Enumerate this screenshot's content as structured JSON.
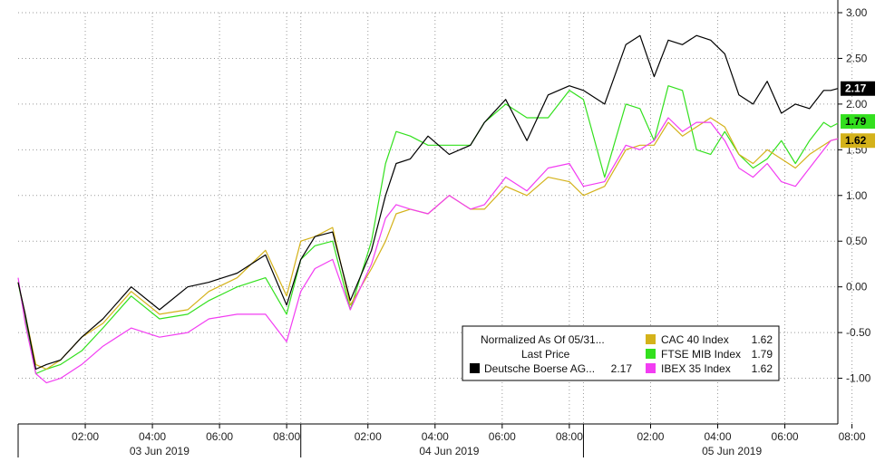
{
  "chart_data": {
    "type": "line",
    "title": "",
    "xlabel": "",
    "ylabel": "",
    "ylim": [
      -1.5,
      3.0
    ],
    "y_ticks": [
      "3.00",
      "2.50",
      "2.00",
      "1.50",
      "1.00",
      "0.50",
      "0.00",
      "-0.50",
      "-1.00"
    ],
    "grid": true,
    "x_time_ticks": [
      "02:00",
      "04:00",
      "06:00",
      "08:00",
      "02:00",
      "04:00",
      "06:00",
      "08:00",
      "02:00",
      "04:00",
      "06:00",
      "08:00"
    ],
    "x_day_labels": [
      "03 Jun 2019",
      "04 Jun 2019",
      "05 Jun 2019"
    ],
    "legend": {
      "position": "bottom-right",
      "header_line1": "Normalized As Of 05/31...",
      "header_line2": "Last Price",
      "entries": [
        {
          "label": "Deutsche Boerse AG...",
          "value": "2.17",
          "color": "#000000"
        },
        {
          "label": "CAC 40 Index",
          "value": "1.62",
          "color": "#d4b21a"
        },
        {
          "label": "FTSE MIB Index",
          "value": "1.79",
          "color": "#33e01e"
        },
        {
          "label": "IBEX 35 Index",
          "value": "1.62",
          "color": "#f23df2"
        }
      ]
    },
    "last_value_badges": [
      {
        "text": "2.17",
        "bg": "#000000",
        "fg": "#ffffff",
        "y": 2.17
      },
      {
        "text": "1.79",
        "bg": "#33e01e",
        "fg": "#000000",
        "y": 1.79
      },
      {
        "text": "1.62",
        "bg": "#d4b21a",
        "fg": "#000000",
        "y": 1.62
      }
    ],
    "x_range": [
      0,
      11.6
    ],
    "series": [
      {
        "name": "Deutsche Boerse AG...",
        "color": "#000000",
        "x": [
          0,
          0.1,
          0.25,
          0.4,
          0.6,
          0.9,
          1.2,
          1.6,
          2.0,
          2.4,
          2.7,
          3.1,
          3.5,
          3.8,
          4.0,
          4.2,
          4.45,
          4.7,
          5.0,
          5.2,
          5.35,
          5.55,
          5.8,
          6.1,
          6.4,
          6.6,
          6.9,
          7.2,
          7.5,
          7.8,
          8.0,
          8.3,
          8.6,
          8.8,
          9.0,
          9.2,
          9.4,
          9.6,
          9.8,
          10.0,
          10.2,
          10.4,
          10.6,
          10.8,
          11.0,
          11.2,
          11.4,
          11.5,
          11.6
        ],
        "y": [
          0.05,
          -0.3,
          -0.9,
          -0.85,
          -0.8,
          -0.55,
          -0.35,
          0.0,
          -0.25,
          0.0,
          0.05,
          0.15,
          0.35,
          -0.2,
          0.3,
          0.55,
          0.6,
          -0.15,
          0.4,
          1.0,
          1.35,
          1.4,
          1.65,
          1.45,
          1.55,
          1.8,
          2.05,
          1.6,
          2.1,
          2.2,
          2.15,
          2.0,
          2.65,
          2.75,
          2.3,
          2.7,
          2.65,
          2.75,
          2.7,
          2.55,
          2.1,
          2.0,
          2.25,
          1.9,
          2.0,
          1.95,
          2.15,
          2.15,
          2.17
        ]
      },
      {
        "name": "CAC 40 Index",
        "color": "#d4b21a",
        "x": [
          0,
          0.1,
          0.25,
          0.4,
          0.6,
          0.9,
          1.2,
          1.6,
          2.0,
          2.4,
          2.7,
          3.1,
          3.5,
          3.8,
          4.0,
          4.2,
          4.45,
          4.7,
          5.0,
          5.2,
          5.35,
          5.55,
          5.8,
          6.1,
          6.4,
          6.6,
          6.9,
          7.2,
          7.5,
          7.8,
          8.0,
          8.3,
          8.6,
          8.8,
          9.0,
          9.2,
          9.4,
          9.6,
          9.8,
          10.0,
          10.2,
          10.4,
          10.6,
          10.8,
          11.0,
          11.2,
          11.4,
          11.5,
          11.6
        ],
        "y": [
          0.05,
          -0.3,
          -0.85,
          -0.9,
          -0.8,
          -0.55,
          -0.4,
          -0.05,
          -0.3,
          -0.25,
          -0.05,
          0.1,
          0.4,
          -0.1,
          0.5,
          0.55,
          0.65,
          -0.2,
          0.2,
          0.5,
          0.8,
          0.85,
          0.8,
          1.0,
          0.85,
          0.85,
          1.1,
          1.0,
          1.2,
          1.15,
          1.0,
          1.1,
          1.5,
          1.55,
          1.55,
          1.8,
          1.65,
          1.75,
          1.85,
          1.75,
          1.45,
          1.35,
          1.5,
          1.4,
          1.3,
          1.45,
          1.55,
          1.6,
          1.62
        ]
      },
      {
        "name": "FTSE MIB Index",
        "color": "#33e01e",
        "x": [
          0,
          0.1,
          0.25,
          0.4,
          0.6,
          0.9,
          1.2,
          1.6,
          2.0,
          2.4,
          2.7,
          3.1,
          3.5,
          3.8,
          4.0,
          4.2,
          4.45,
          4.7,
          5.0,
          5.2,
          5.35,
          5.55,
          5.8,
          6.1,
          6.4,
          6.6,
          6.9,
          7.2,
          7.5,
          7.8,
          8.0,
          8.3,
          8.6,
          8.8,
          9.0,
          9.2,
          9.4,
          9.6,
          9.8,
          10.0,
          10.2,
          10.4,
          10.6,
          10.8,
          11.0,
          11.2,
          11.4,
          11.5,
          11.6
        ],
        "y": [
          0.05,
          -0.35,
          -0.95,
          -0.9,
          -0.85,
          -0.7,
          -0.45,
          -0.1,
          -0.35,
          -0.3,
          -0.15,
          0.0,
          0.1,
          -0.3,
          0.3,
          0.45,
          0.5,
          -0.25,
          0.5,
          1.35,
          1.7,
          1.65,
          1.55,
          1.55,
          1.55,
          1.8,
          2.0,
          1.85,
          1.85,
          2.15,
          2.05,
          1.2,
          2.0,
          1.95,
          1.6,
          2.2,
          2.15,
          1.5,
          1.45,
          1.7,
          1.45,
          1.3,
          1.4,
          1.6,
          1.35,
          1.6,
          1.8,
          1.75,
          1.79
        ]
      },
      {
        "name": "IBEX 35 Index",
        "color": "#f23df2",
        "x": [
          0,
          0.1,
          0.25,
          0.4,
          0.6,
          0.9,
          1.2,
          1.6,
          2.0,
          2.4,
          2.7,
          3.1,
          3.5,
          3.8,
          4.0,
          4.2,
          4.45,
          4.7,
          5.0,
          5.2,
          5.35,
          5.55,
          5.8,
          6.1,
          6.4,
          6.6,
          6.9,
          7.2,
          7.5,
          7.8,
          8.0,
          8.3,
          8.6,
          8.8,
          9.0,
          9.2,
          9.4,
          9.6,
          9.8,
          10.0,
          10.2,
          10.4,
          10.6,
          10.8,
          11.0,
          11.2,
          11.4,
          11.5,
          11.6
        ],
        "y": [
          0.1,
          -0.4,
          -0.95,
          -1.05,
          -1.0,
          -0.85,
          -0.65,
          -0.45,
          -0.55,
          -0.5,
          -0.35,
          -0.3,
          -0.3,
          -0.6,
          -0.05,
          0.2,
          0.3,
          -0.25,
          0.25,
          0.75,
          0.9,
          0.85,
          0.8,
          1.0,
          0.85,
          0.9,
          1.2,
          1.05,
          1.3,
          1.35,
          1.1,
          1.15,
          1.55,
          1.5,
          1.6,
          1.85,
          1.7,
          1.8,
          1.8,
          1.6,
          1.3,
          1.2,
          1.35,
          1.15,
          1.1,
          1.3,
          1.5,
          1.6,
          1.62
        ]
      }
    ]
  }
}
